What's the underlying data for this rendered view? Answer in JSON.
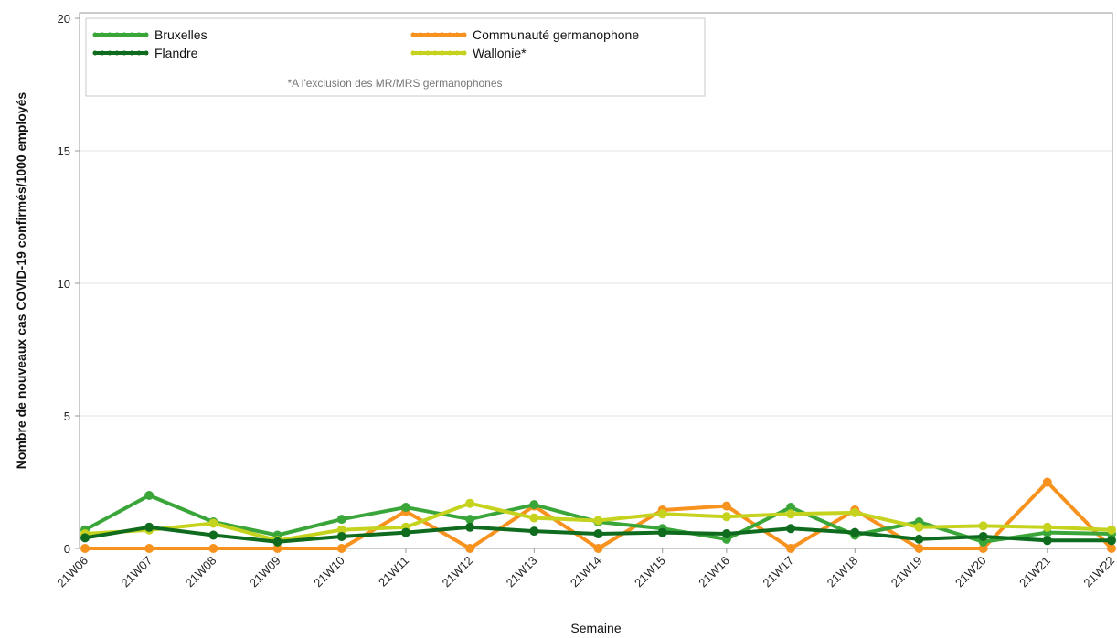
{
  "chart_data": {
    "type": "line",
    "title": "",
    "xlabel": "Semaine",
    "ylabel": "Nombre de nouveaux cas COVID-19 confirmés/1000 employés",
    "ylim": [
      0,
      20
    ],
    "yticks": [
      "0",
      "5",
      "10",
      "15",
      "20"
    ],
    "grid": true,
    "legend_position": "top-left",
    "note": "*A l'exclusion des MR/MRS germanophones",
    "categories": [
      "21W06",
      "21W07",
      "21W08",
      "21W09",
      "21W10",
      "21W11",
      "21W12",
      "21W13",
      "21W14",
      "21W15",
      "21W16",
      "21W17",
      "21W18",
      "21W19",
      "21W20",
      "21W21",
      "21W22"
    ],
    "series": [
      {
        "name": "Bruxelles",
        "color": "#3aa63a",
        "values": [
          0.7,
          2.0,
          1.0,
          0.5,
          1.1,
          1.55,
          1.1,
          1.65,
          1.0,
          0.75,
          0.35,
          1.55,
          0.5,
          1.0,
          0.25,
          0.6,
          0.55
        ]
      },
      {
        "name": "Flandre",
        "color": "#0f6b1e",
        "values": [
          0.4,
          0.8,
          0.5,
          0.25,
          0.45,
          0.6,
          0.8,
          0.65,
          0.55,
          0.6,
          0.55,
          0.75,
          0.6,
          0.35,
          0.45,
          0.3,
          0.3
        ]
      },
      {
        "name": "Communauté germanophone",
        "color": "#f7921e",
        "values": [
          0.0,
          0.0,
          0.0,
          0.0,
          0.0,
          1.4,
          0.0,
          1.6,
          0.0,
          1.45,
          1.6,
          0.0,
          1.45,
          0.0,
          0.0,
          2.5,
          0.0
        ]
      },
      {
        "name": "Wallonie*",
        "color": "#c5d21e",
        "values": [
          0.55,
          0.7,
          0.95,
          0.3,
          0.7,
          0.8,
          1.7,
          1.15,
          1.05,
          1.3,
          1.2,
          1.3,
          1.35,
          0.8,
          0.85,
          0.8,
          0.7
        ]
      }
    ]
  }
}
